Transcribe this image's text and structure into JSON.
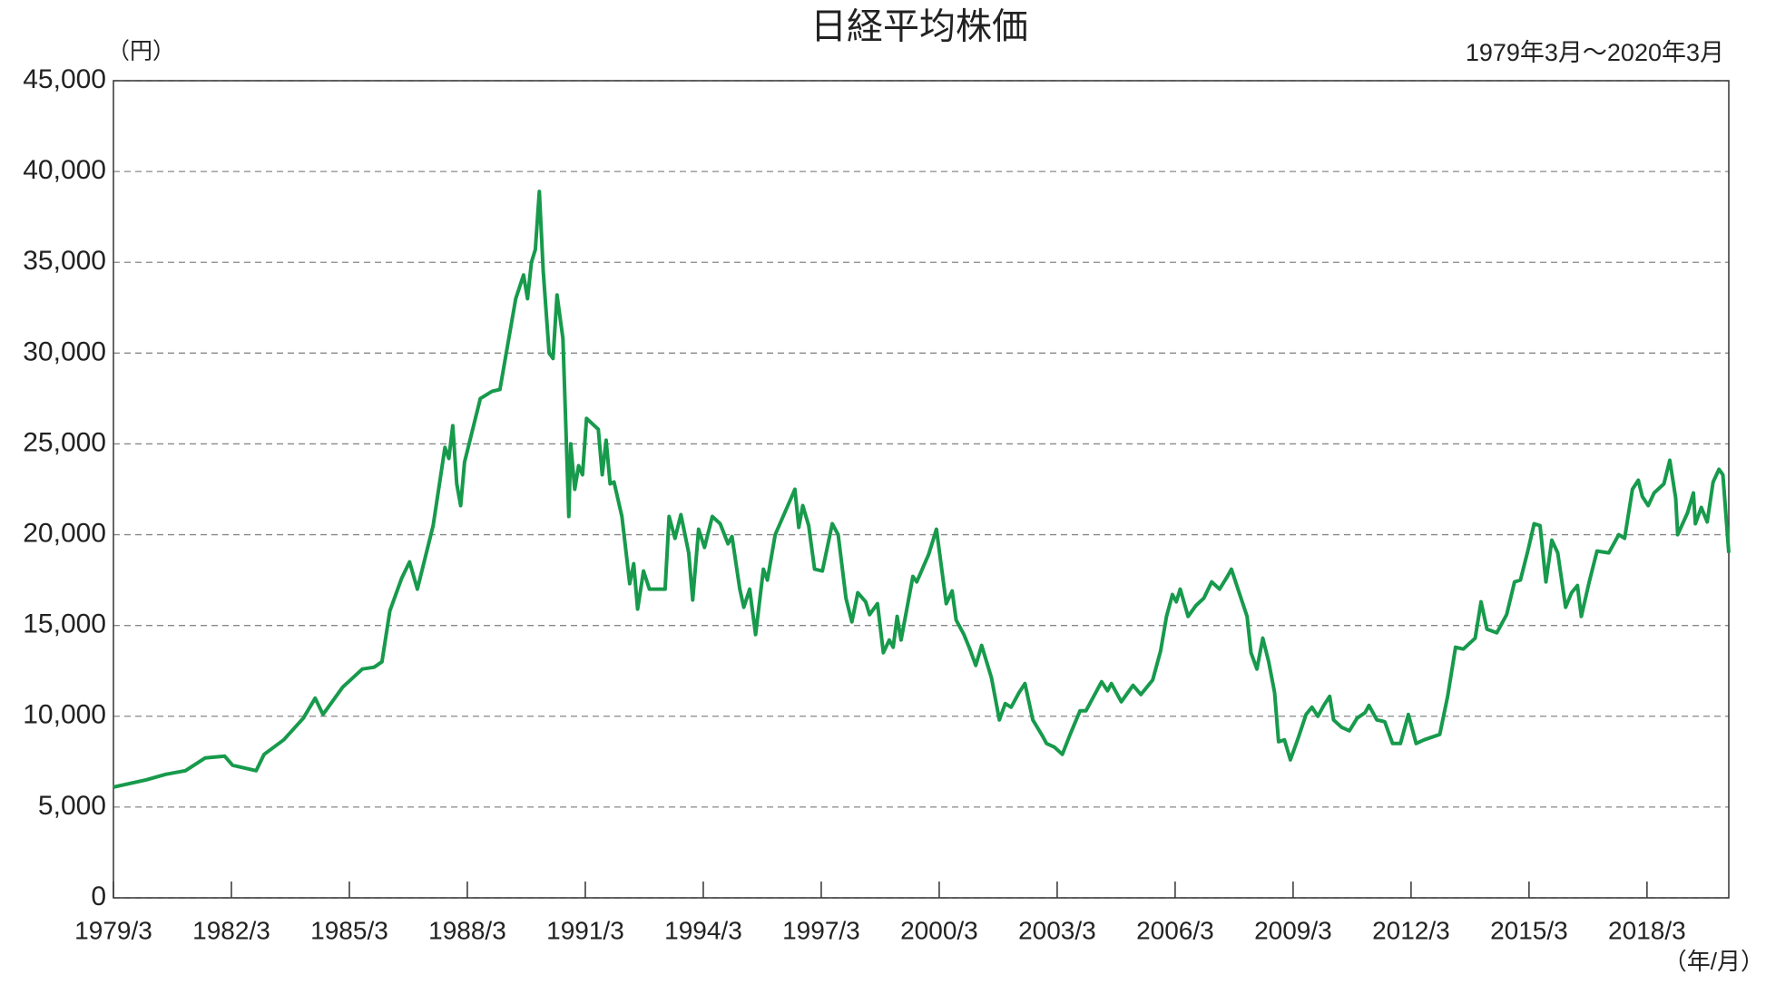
{
  "chart_data": {
    "type": "line",
    "title": "日経平均株価",
    "subtitle": "1979年3月～2020年3月",
    "y_unit": "（円）",
    "x_unit": "（年/月）",
    "color": "#179a4c",
    "grid": true,
    "xlim": [
      1979.17,
      2020.25
    ],
    "ylim": [
      0,
      45000
    ],
    "yticks": [
      0,
      {
        "value": 5000,
        "label": "5,000"
      },
      {
        "value": 10000,
        "label": "10,000"
      },
      {
        "value": 15000,
        "label": "15,000"
      },
      {
        "value": 20000,
        "label": "20,000"
      },
      {
        "value": 25000,
        "label": "25,000"
      },
      {
        "value": 30000,
        "label": "30,000"
      },
      {
        "value": 35000,
        "label": "35,000"
      },
      {
        "value": 40000,
        "label": "40,000"
      },
      {
        "value": 45000,
        "label": "45,000"
      }
    ],
    "xticks": [
      {
        "value": 1979.17,
        "label": "1979/3"
      },
      {
        "value": 1982.17,
        "label": "1982/3"
      },
      {
        "value": 1985.17,
        "label": "1985/3"
      },
      {
        "value": 1988.17,
        "label": "1988/3"
      },
      {
        "value": 1991.17,
        "label": "1991/3"
      },
      {
        "value": 1994.17,
        "label": "1994/3"
      },
      {
        "value": 1997.17,
        "label": "1997/3"
      },
      {
        "value": 2000.17,
        "label": "2000/3"
      },
      {
        "value": 2003.17,
        "label": "2003/3"
      },
      {
        "value": 2006.17,
        "label": "2006/3"
      },
      {
        "value": 2009.17,
        "label": "2009/3"
      },
      {
        "value": 2012.17,
        "label": "2012/3"
      },
      {
        "value": 2015.17,
        "label": "2015/3"
      },
      {
        "value": 2018.17,
        "label": "2018/3"
      }
    ],
    "x": [
      1979.17,
      1980.0,
      1980.5,
      1981.0,
      1981.5,
      1982.0,
      1982.2,
      1982.8,
      1983.0,
      1983.5,
      1984.0,
      1984.3,
      1984.5,
      1985.0,
      1985.5,
      1985.8,
      1986.0,
      1986.2,
      1986.5,
      1986.7,
      1986.9,
      1987.3,
      1987.6,
      1987.7,
      1987.8,
      1987.9,
      1988.0,
      1988.1,
      1988.5,
      1988.8,
      1989.0,
      1989.2,
      1989.4,
      1989.6,
      1989.7,
      1989.8,
      1989.9,
      1990.0,
      1990.1,
      1990.25,
      1990.35,
      1990.45,
      1990.6,
      1990.75,
      1990.8,
      1990.9,
      1991.0,
      1991.1,
      1991.2,
      1991.5,
      1991.6,
      1991.7,
      1991.8,
      1991.9,
      1992.1,
      1992.3,
      1992.4,
      1992.5,
      1992.65,
      1992.8,
      1993.0,
      1993.2,
      1993.3,
      1993.45,
      1993.6,
      1993.8,
      1993.9,
      1994.05,
      1994.2,
      1994.4,
      1994.6,
      1994.8,
      1994.9,
      1995.1,
      1995.2,
      1995.35,
      1995.5,
      1995.7,
      1995.8,
      1996.0,
      1996.2,
      1996.4,
      1996.5,
      1996.6,
      1996.7,
      1996.85,
      1997.0,
      1997.2,
      1997.45,
      1997.6,
      1997.8,
      1997.95,
      1998.1,
      1998.3,
      1998.4,
      1998.6,
      1998.75,
      1998.9,
      1999.0,
      1999.1,
      1999.2,
      1999.5,
      1999.6,
      1999.9,
      2000.1,
      2000.3,
      2000.35,
      2000.5,
      2000.6,
      2000.8,
      2000.95,
      2001.1,
      2001.25,
      2001.5,
      2001.7,
      2001.85,
      2002.0,
      2002.2,
      2002.35,
      2002.55,
      2002.8,
      2002.9,
      2003.1,
      2003.3,
      2003.5,
      2003.75,
      2003.9,
      2004.0,
      2004.3,
      2004.45,
      2004.55,
      2004.8,
      2005.1,
      2005.3,
      2005.6,
      2005.8,
      2005.95,
      2006.1,
      2006.2,
      2006.3,
      2006.5,
      2006.7,
      2006.9,
      2007.1,
      2007.3,
      2007.5,
      2007.6,
      2007.8,
      2008.0,
      2008.1,
      2008.25,
      2008.4,
      2008.55,
      2008.7,
      2008.8,
      2008.95,
      2009.1,
      2009.3,
      2009.5,
      2009.65,
      2009.8,
      2009.95,
      2010.1,
      2010.2,
      2010.4,
      2010.6,
      2010.8,
      2011.0,
      2011.1,
      2011.3,
      2011.5,
      2011.7,
      2011.9,
      2012.1,
      2012.3,
      2012.5,
      2012.9,
      2013.1,
      2013.3,
      2013.5,
      2013.8,
      2013.95,
      2014.1,
      2014.35,
      2014.6,
      2014.8,
      2014.95,
      2015.15,
      2015.3,
      2015.45,
      2015.6,
      2015.75,
      2015.9,
      2016.1,
      2016.25,
      2016.4,
      2016.5,
      2016.7,
      2016.9,
      2017.2,
      2017.45,
      2017.6,
      2017.8,
      2017.95,
      2018.05,
      2018.2,
      2018.35,
      2018.6,
      2018.75,
      2018.9,
      2018.95,
      2019.2,
      2019.35,
      2019.4,
      2019.55,
      2019.7,
      2019.85,
      2020.0,
      2020.1,
      2020.25
    ],
    "values": [
      6100,
      6500,
      6800,
      7000,
      7700,
      7800,
      7300,
      7000,
      7900,
      8700,
      9900,
      11000,
      10100,
      11600,
      12600,
      12700,
      13000,
      15800,
      17600,
      18500,
      17000,
      20500,
      24800,
      24200,
      26000,
      22800,
      21600,
      24000,
      27500,
      27900,
      28000,
      30500,
      33000,
      34300,
      33000,
      35000,
      35700,
      38900,
      34500,
      30000,
      29700,
      33200,
      30800,
      21000,
      25000,
      22500,
      23800,
      23300,
      26400,
      25800,
      23300,
      25200,
      22800,
      22900,
      21000,
      17300,
      18400,
      15900,
      18000,
      17000,
      17000,
      17000,
      21000,
      19800,
      21100,
      19000,
      16400,
      20300,
      19300,
      21000,
      20600,
      19500,
      19900,
      17000,
      16000,
      17000,
      14500,
      18100,
      17500,
      20000,
      21000,
      22000,
      22500,
      20400,
      21600,
      20500,
      18100,
      18000,
      20600,
      20000,
      16500,
      15200,
      16800,
      16300,
      15600,
      16200,
      13500,
      14200,
      13800,
      15500,
      14200,
      17700,
      17400,
      18900,
      20300,
      17000,
      16200,
      16900,
      15300,
      14500,
      13700,
      12800,
      13900,
      12100,
      9800,
      10700,
      10500,
      11300,
      11800,
      9800,
      8900,
      8500,
      8300,
      7900,
      9000,
      10300,
      10300,
      10700,
      11900,
      11400,
      11800,
      10800,
      11700,
      11200,
      12000,
      13600,
      15500,
      16700,
      16300,
      17000,
      15500,
      16100,
      16500,
      17400,
      17000,
      17700,
      18100,
      16800,
      15500,
      13500,
      12600,
      14300,
      13000,
      11300,
      8600,
      8700,
      7600,
      8800,
      10100,
      10500,
      10000,
      10600,
      11100,
      9800,
      9400,
      9200,
      9900,
      10200,
      10600,
      9800,
      9700,
      8500,
      8500,
      10100,
      8500,
      8700,
      9000,
      11100,
      13800,
      13700,
      14300,
      16300,
      14800,
      14600,
      15600,
      17400,
      17500,
      19200,
      20600,
      20500,
      17400,
      19700,
      19000,
      16000,
      16800,
      17200,
      15500,
      17400,
      19100,
      19000,
      20000,
      19800,
      22500,
      23000,
      22100,
      21600,
      22300,
      22800,
      24100,
      22000,
      20000,
      21200,
      22300,
      20600,
      21500,
      20700,
      22900,
      23600,
      23300,
      19000
    ]
  }
}
